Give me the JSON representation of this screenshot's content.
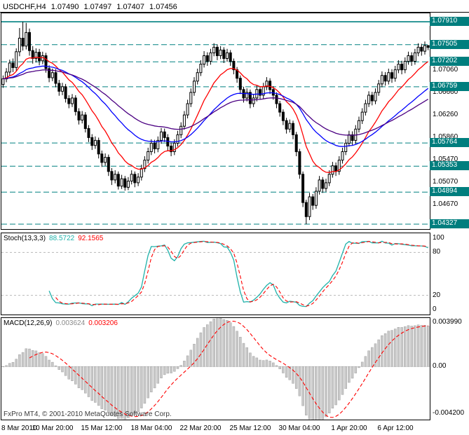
{
  "header": {
    "symbol_period": "USDCHF,H4",
    "ohlc": [
      "1.07490",
      "1.07497",
      "1.07407",
      "1.07456"
    ]
  },
  "indicators": {
    "stoch": {
      "label": "Stoch(13,3,3)",
      "values": [
        "88.5722",
        "92.1565"
      ]
    },
    "macd": {
      "label": "MACD(12,26,9)",
      "values": [
        "0.003624",
        "0.003206"
      ]
    }
  },
  "footer": {
    "copyright": "FxPro MT4, © 2001-2010 MetaQuotes Software Corp."
  },
  "chart_data": {
    "type": "candlestick",
    "symbol": "USDCHF",
    "timeframe": "H4",
    "title": "USDCHF,H4 1.07490 1.07497 1.07407 1.07456",
    "price_axis": {
      "min": 1.0424,
      "max": 1.0806,
      "ticks": [
        1.0706,
        1.0666,
        1.0626,
        1.0586,
        1.0547,
        1.0507,
        1.0467
      ]
    },
    "level_color": "#008080",
    "level_box_bg": "#007E7E",
    "level_lines": [
      {
        "value": 1.0791,
        "style": "solid"
      },
      {
        "value": 1.07505,
        "style": "dash"
      },
      {
        "value": 1.07202,
        "style": "dash"
      },
      {
        "value": 1.06759,
        "style": "dash"
      },
      {
        "value": 1.05764,
        "style": "dash"
      },
      {
        "value": 1.05353,
        "style": "dash"
      },
      {
        "value": 1.04894,
        "style": "dash"
      },
      {
        "value": 1.04327,
        "style": "dash"
      }
    ],
    "candle_colors": {
      "bull": "#FFFFFF",
      "bear": "#000000",
      "outline": "#000000"
    },
    "ma_overlays": [
      {
        "period": 13,
        "color": "#FF0000"
      },
      {
        "period": 34,
        "color": "#0000FF"
      },
      {
        "period": 55,
        "color": "#4B0082"
      }
    ],
    "candles": [
      [
        1.068,
        1.0696,
        1.0674,
        1.069
      ],
      [
        1.069,
        1.0709,
        1.0684,
        1.0702
      ],
      [
        1.0702,
        1.0724,
        1.0696,
        1.0718
      ],
      [
        1.0718,
        1.0726,
        1.0702,
        1.071
      ],
      [
        1.071,
        1.0744,
        1.0704,
        1.0738
      ],
      [
        1.0738,
        1.078,
        1.073,
        1.0762
      ],
      [
        1.0762,
        1.0791,
        1.074,
        1.0748
      ],
      [
        1.0748,
        1.0789,
        1.0742,
        1.0772
      ],
      [
        1.0772,
        1.0779,
        1.0731,
        1.074
      ],
      [
        1.074,
        1.0748,
        1.0717,
        1.0726
      ],
      [
        1.0726,
        1.0744,
        1.0719,
        1.0737
      ],
      [
        1.0737,
        1.0743,
        1.0714,
        1.0722
      ],
      [
        1.0722,
        1.0738,
        1.0716,
        1.0731
      ],
      [
        1.0731,
        1.0736,
        1.0701,
        1.0708
      ],
      [
        1.0708,
        1.0714,
        1.0684,
        1.0692
      ],
      [
        1.0692,
        1.0708,
        1.0686,
        1.0701
      ],
      [
        1.0701,
        1.0707,
        1.0675,
        1.0682
      ],
      [
        1.0682,
        1.0688,
        1.066,
        1.0668
      ],
      [
        1.0668,
        1.0683,
        1.0661,
        1.0676
      ],
      [
        1.0676,
        1.0681,
        1.0648,
        1.0655
      ],
      [
        1.0655,
        1.0661,
        1.0638,
        1.0646
      ],
      [
        1.0646,
        1.0663,
        1.064,
        1.0656
      ],
      [
        1.0656,
        1.0661,
        1.0625,
        1.0632
      ],
      [
        1.0632,
        1.0638,
        1.0609,
        1.0617
      ],
      [
        1.0617,
        1.0633,
        1.0611,
        1.0626
      ],
      [
        1.0626,
        1.0631,
        1.0595,
        1.0602
      ],
      [
        1.0602,
        1.0608,
        1.0578,
        1.0586
      ],
      [
        1.0586,
        1.0592,
        1.0564,
        1.0572
      ],
      [
        1.0572,
        1.0588,
        1.0566,
        1.0581
      ],
      [
        1.0581,
        1.0586,
        1.0549,
        1.0557
      ],
      [
        1.0557,
        1.0563,
        1.0534,
        1.0542
      ],
      [
        1.0542,
        1.0558,
        1.0536,
        1.0551
      ],
      [
        1.0551,
        1.0556,
        1.0518,
        1.0526
      ],
      [
        1.0526,
        1.0532,
        1.0502,
        1.0511
      ],
      [
        1.0511,
        1.0528,
        1.0505,
        1.0521
      ],
      [
        1.0521,
        1.0526,
        1.0494,
        1.05
      ],
      [
        1.05,
        1.052,
        1.0495,
        1.0513
      ],
      [
        1.0513,
        1.0518,
        1.0492,
        1.0498
      ],
      [
        1.0498,
        1.0516,
        1.0493,
        1.0509
      ],
      [
        1.0509,
        1.0528,
        1.0503,
        1.0521
      ],
      [
        1.0521,
        1.0526,
        1.0498,
        1.0506
      ],
      [
        1.0506,
        1.0523,
        1.05,
        1.0516
      ],
      [
        1.0516,
        1.0538,
        1.051,
        1.0531
      ],
      [
        1.0531,
        1.0553,
        1.0525,
        1.0546
      ],
      [
        1.0546,
        1.0568,
        1.054,
        1.0561
      ],
      [
        1.0561,
        1.0583,
        1.0555,
        1.0576
      ],
      [
        1.0576,
        1.0582,
        1.0558,
        1.0566
      ],
      [
        1.0566,
        1.0588,
        1.056,
        1.0581
      ],
      [
        1.0581,
        1.0603,
        1.0575,
        1.0596
      ],
      [
        1.0596,
        1.0602,
        1.0578,
        1.0586
      ],
      [
        1.0586,
        1.0592,
        1.0563,
        1.0571
      ],
      [
        1.0571,
        1.0577,
        1.0553,
        1.0561
      ],
      [
        1.0561,
        1.0583,
        1.0555,
        1.0576
      ],
      [
        1.0576,
        1.0598,
        1.057,
        1.0591
      ],
      [
        1.0591,
        1.0613,
        1.0585,
        1.0606
      ],
      [
        1.0606,
        1.0633,
        1.06,
        1.0626
      ],
      [
        1.0626,
        1.0653,
        1.062,
        1.0646
      ],
      [
        1.0646,
        1.0673,
        1.064,
        1.0666
      ],
      [
        1.0666,
        1.0693,
        1.066,
        1.0686
      ],
      [
        1.0686,
        1.0708,
        1.068,
        1.0701
      ],
      [
        1.0701,
        1.0723,
        1.0695,
        1.0716
      ],
      [
        1.0716,
        1.0739,
        1.071,
        1.0731
      ],
      [
        1.0731,
        1.0737,
        1.0713,
        1.0721
      ],
      [
        1.0721,
        1.0743,
        1.0715,
        1.0736
      ],
      [
        1.0736,
        1.0753,
        1.073,
        1.0746
      ],
      [
        1.0746,
        1.0751,
        1.0723,
        1.0731
      ],
      [
        1.0731,
        1.0748,
        1.0725,
        1.0741
      ],
      [
        1.0741,
        1.0746,
        1.0718,
        1.0726
      ],
      [
        1.0726,
        1.0743,
        1.072,
        1.0736
      ],
      [
        1.0736,
        1.0741,
        1.0713,
        1.0721
      ],
      [
        1.0721,
        1.0726,
        1.0698,
        1.0706
      ],
      [
        1.0706,
        1.0711,
        1.0683,
        1.0691
      ],
      [
        1.0691,
        1.0696,
        1.0663,
        1.0671
      ],
      [
        1.0671,
        1.0676,
        1.0648,
        1.0656
      ],
      [
        1.0656,
        1.0673,
        1.065,
        1.0666
      ],
      [
        1.0666,
        1.0671,
        1.0638,
        1.0646
      ],
      [
        1.0646,
        1.0663,
        1.064,
        1.0656
      ],
      [
        1.0656,
        1.0678,
        1.065,
        1.0671
      ],
      [
        1.0671,
        1.0677,
        1.0653,
        1.0661
      ],
      [
        1.0661,
        1.0683,
        1.0655,
        1.0676
      ],
      [
        1.0676,
        1.0693,
        1.067,
        1.0686
      ],
      [
        1.0686,
        1.0691,
        1.0663,
        1.0671
      ],
      [
        1.0671,
        1.0677,
        1.0653,
        1.0661
      ],
      [
        1.0661,
        1.0666,
        1.0638,
        1.0646
      ],
      [
        1.0646,
        1.0651,
        1.0623,
        1.0631
      ],
      [
        1.0631,
        1.0636,
        1.0608,
        1.0616
      ],
      [
        1.0616,
        1.0621,
        1.0593,
        1.0601
      ],
      [
        1.0601,
        1.0618,
        1.0595,
        1.0611
      ],
      [
        1.0611,
        1.0616,
        1.0583,
        1.0591
      ],
      [
        1.0591,
        1.0596,
        1.0553,
        1.0561
      ],
      [
        1.0561,
        1.0566,
        1.0513,
        1.0521
      ],
      [
        1.0521,
        1.0526,
        1.0463,
        1.0471
      ],
      [
        1.0471,
        1.0476,
        1.04327,
        1.0446
      ],
      [
        1.0446,
        1.0488,
        1.044,
        1.0481
      ],
      [
        1.0481,
        1.0486,
        1.0458,
        1.0466
      ],
      [
        1.0466,
        1.0498,
        1.046,
        1.0491
      ],
      [
        1.0491,
        1.0518,
        1.0485,
        1.0511
      ],
      [
        1.0511,
        1.0516,
        1.0488,
        1.0496
      ],
      [
        1.0496,
        1.0513,
        1.049,
        1.0506
      ],
      [
        1.0506,
        1.0528,
        1.05,
        1.0521
      ],
      [
        1.0521,
        1.0543,
        1.0515,
        1.0536
      ],
      [
        1.0536,
        1.0542,
        1.0518,
        1.0526
      ],
      [
        1.0526,
        1.0553,
        1.052,
        1.0546
      ],
      [
        1.0546,
        1.0568,
        1.054,
        1.0561
      ],
      [
        1.0561,
        1.0583,
        1.0555,
        1.0576
      ],
      [
        1.0576,
        1.0598,
        1.057,
        1.0591
      ],
      [
        1.0591,
        1.0597,
        1.0573,
        1.0581
      ],
      [
        1.0581,
        1.0608,
        1.0575,
        1.0601
      ],
      [
        1.0601,
        1.0623,
        1.0595,
        1.0616
      ],
      [
        1.0616,
        1.0638,
        1.061,
        1.0631
      ],
      [
        1.0631,
        1.0653,
        1.0625,
        1.0646
      ],
      [
        1.0646,
        1.0668,
        1.064,
        1.0661
      ],
      [
        1.0661,
        1.0667,
        1.0643,
        1.0651
      ],
      [
        1.0651,
        1.0673,
        1.0645,
        1.0666
      ],
      [
        1.0666,
        1.0688,
        1.066,
        1.0681
      ],
      [
        1.0681,
        1.0703,
        1.0675,
        1.0696
      ],
      [
        1.0696,
        1.0702,
        1.0678,
        1.0686
      ],
      [
        1.0686,
        1.0708,
        1.068,
        1.0701
      ],
      [
        1.0701,
        1.0707,
        1.0683,
        1.0691
      ],
      [
        1.0691,
        1.0713,
        1.0685,
        1.0706
      ],
      [
        1.0706,
        1.0723,
        1.07,
        1.0716
      ],
      [
        1.0716,
        1.0722,
        1.0698,
        1.0706
      ],
      [
        1.0706,
        1.0728,
        1.07,
        1.0721
      ],
      [
        1.0721,
        1.0738,
        1.0715,
        1.0731
      ],
      [
        1.0731,
        1.0737,
        1.0713,
        1.0721
      ],
      [
        1.0721,
        1.0743,
        1.0715,
        1.0736
      ],
      [
        1.0736,
        1.0753,
        1.073,
        1.0746
      ],
      [
        1.0746,
        1.0752,
        1.0731,
        1.0739
      ],
      [
        1.0739,
        1.0756,
        1.0733,
        1.0749
      ],
      [
        1.0749,
        1.07497,
        1.07407,
        1.07456
      ]
    ],
    "time_axis": [
      {
        "label": "8 Mar 2010",
        "bar": 0
      },
      {
        "label": "10 Mar 20:00",
        "bar": 15
      },
      {
        "label": "15 Mar 12:00",
        "bar": 30
      },
      {
        "label": "18 Mar 04:00",
        "bar": 45
      },
      {
        "label": "22 Mar 20:00",
        "bar": 60
      },
      {
        "label": "25 Mar 12:00",
        "bar": 75
      },
      {
        "label": "30 Mar 04:00",
        "bar": 90
      },
      {
        "label": "1 Apr 20:00",
        "bar": 105
      },
      {
        "label": "6 Apr 12:00",
        "bar": 119
      }
    ],
    "stoch": {
      "k": 13,
      "slowing": 3,
      "d": 3,
      "levels": [
        80,
        20
      ],
      "axis_ticks": [
        100,
        80,
        20,
        0
      ],
      "colors": {
        "main": "#20B2AA",
        "signal": "#FF0000"
      },
      "last_values": [
        88.5722,
        92.1565
      ]
    },
    "macd": {
      "fast": 12,
      "slow": 26,
      "signal": 9,
      "range": [
        -0.0048,
        0.0044
      ],
      "axis_ticks": [
        {
          "value": 0.00399,
          "label": "0.003990"
        },
        {
          "value": 0.0,
          "label": "0.00"
        },
        {
          "value": -0.0042,
          "label": "-0.004200"
        }
      ],
      "colors": {
        "hist": "#C9C9C9",
        "hist_edge": "#A0A0A0",
        "signal": "#FF0000"
      },
      "last_values": [
        0.003624,
        0.003206
      ]
    }
  }
}
